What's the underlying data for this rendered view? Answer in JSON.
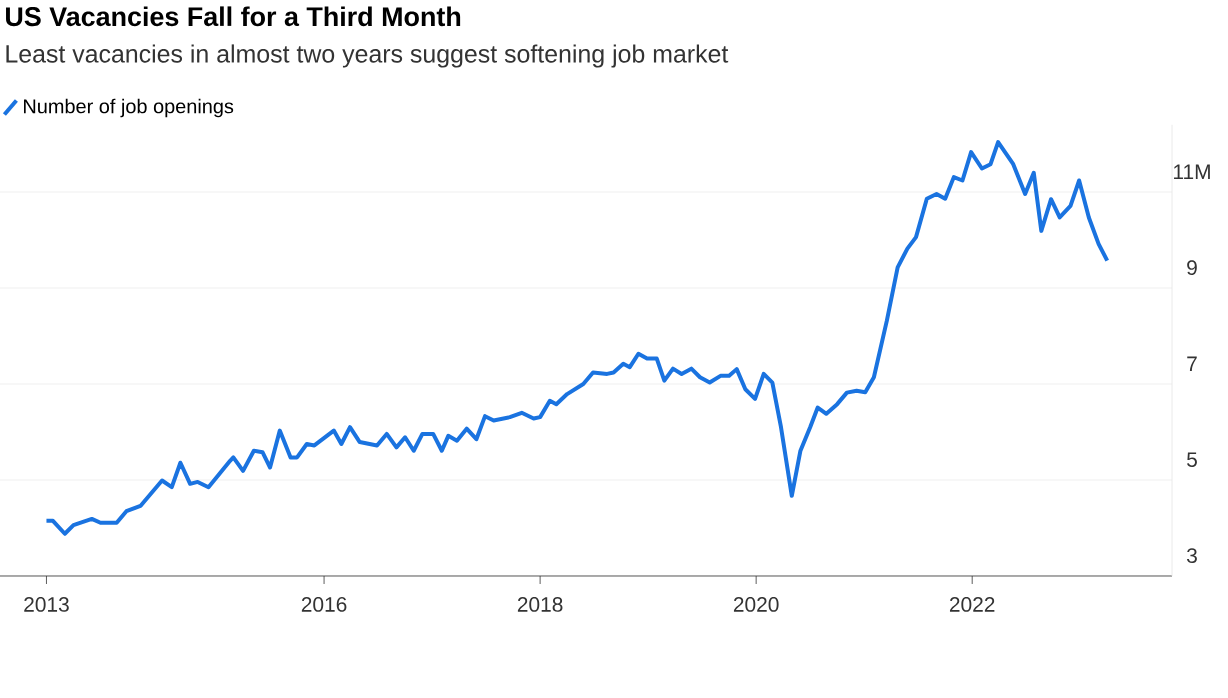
{
  "chart_data": {
    "type": "line",
    "title": "US Vacancies Fall for a Third Month",
    "subtitle": "Least vacancies in almost two years suggest softening job market",
    "x": [
      2013.43,
      2013.49,
      2013.6,
      2013.68,
      2013.85,
      2013.93,
      2014.08,
      2014.17,
      2014.3,
      2014.5,
      2014.59,
      2014.67,
      2014.76,
      2014.83,
      2014.93,
      2015.13,
      2015.16,
      2015.25,
      2015.35,
      2015.43,
      2015.5,
      2015.59,
      2015.69,
      2015.75,
      2015.84,
      2015.91,
      2016.09,
      2016.16,
      2016.24,
      2016.33,
      2016.49,
      2016.58,
      2016.67,
      2016.75,
      2016.83,
      2016.91,
      2017.01,
      2017.09,
      2017.15,
      2017.23,
      2017.32,
      2017.41,
      2017.49,
      2017.57,
      2017.72,
      2017.83,
      2017.94,
      2018.0,
      2018.09,
      2018.15,
      2018.25,
      2018.4,
      2018.49,
      2018.62,
      2018.68,
      2018.77,
      2018.83,
      2018.91,
      2018.99,
      2019.08,
      2019.15,
      2019.23,
      2019.31,
      2019.4,
      2019.48,
      2019.57,
      2019.67,
      2019.75,
      2019.82,
      2019.9,
      2019.99,
      2020.07,
      2020.15,
      2020.23,
      2020.33,
      2020.41,
      2020.5,
      2020.57,
      2020.65,
      2020.75,
      2020.84,
      2020.93,
      2021.01,
      2021.09,
      2021.21,
      2021.31,
      2021.4,
      2021.48,
      2021.58,
      2021.67,
      2021.75,
      2021.83,
      2021.91,
      2021.99,
      2022.09,
      2022.17,
      2022.24,
      2022.38,
      2022.49,
      2022.57,
      2022.64,
      2022.73,
      2022.81,
      2022.91,
      2022.99,
      2023.08,
      2023.17,
      2023.25
    ],
    "series": [
      {
        "name": "Number of job openings",
        "color": "#1a73e0",
        "values": [
          4.15,
          4.15,
          3.88,
          4.06,
          4.19,
          4.11,
          4.11,
          4.35,
          4.46,
          4.99,
          4.85,
          5.36,
          4.92,
          4.96,
          4.85,
          5.4,
          5.47,
          5.19,
          5.61,
          5.58,
          5.26,
          6.03,
          5.47,
          5.47,
          5.75,
          5.72,
          6.03,
          5.75,
          6.1,
          5.79,
          5.72,
          5.96,
          5.68,
          5.89,
          5.61,
          5.96,
          5.96,
          5.61,
          5.92,
          5.82,
          6.07,
          5.85,
          6.33,
          6.24,
          6.31,
          6.4,
          6.28,
          6.31,
          6.65,
          6.58,
          6.79,
          7.0,
          7.24,
          7.21,
          7.24,
          7.42,
          7.35,
          7.63,
          7.53,
          7.53,
          7.07,
          7.32,
          7.21,
          7.32,
          7.14,
          7.03,
          7.17,
          7.17,
          7.31,
          6.89,
          6.69,
          7.21,
          7.03,
          6.1,
          4.67,
          5.61,
          6.1,
          6.51,
          6.38,
          6.58,
          6.82,
          6.86,
          6.83,
          7.14,
          8.32,
          9.43,
          9.82,
          10.06,
          10.86,
          10.96,
          10.86,
          11.31,
          11.24,
          11.83,
          11.49,
          11.58,
          12.04,
          11.58,
          10.96,
          11.4,
          10.19,
          10.85,
          10.47,
          10.71,
          11.24,
          10.47,
          9.92,
          9.57
        ]
      }
    ],
    "xlim": [
      2013.0,
      2023.85
    ],
    "ylim": [
      3,
      12.4
    ],
    "xticks": [
      {
        "value": 2013.43,
        "label": "2013"
      },
      2016,
      2018,
      2020,
      2022
    ],
    "yticks": [
      3,
      5,
      7,
      9,
      {
        "value": 11,
        "label": "11M"
      }
    ],
    "grid": "y",
    "legend": "top left"
  }
}
